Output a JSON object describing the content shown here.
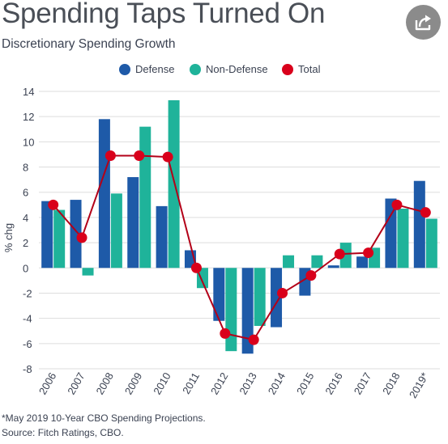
{
  "header": {
    "title": "Spending Taps Turned On",
    "subtitle": "Discretionary Spending Growth"
  },
  "share_button": {
    "icon": "share-icon"
  },
  "footer": {
    "note": "*May 2019 10-Year CBO Spending Projections.",
    "source": "Source: Fitch Ratings, CBO."
  },
  "colors": {
    "defense": "#1e5aa8",
    "non_defense": "#1fb39a",
    "total": "#d9001b",
    "total_line": "#b30018",
    "grid": "#dddddd"
  },
  "chart_data": {
    "type": "bar",
    "title": "Spending Taps Turned On",
    "subtitle": "Discretionary Spending Growth",
    "xlabel": "",
    "ylabel": "% chg",
    "ylim": [
      -8,
      14
    ],
    "yticks": [
      14,
      12,
      10,
      8,
      6,
      4,
      2,
      0,
      -2,
      -4,
      -6,
      -8
    ],
    "grid": true,
    "legend": "top-center",
    "categories": [
      "2006",
      "2007",
      "2008",
      "2009",
      "2010",
      "2011",
      "2012",
      "2013",
      "2014",
      "2015",
      "2016",
      "2017",
      "2018",
      "2019*"
    ],
    "series": [
      {
        "name": "Defense",
        "type": "bar",
        "values": [
          5.3,
          5.4,
          11.8,
          7.2,
          4.9,
          1.4,
          -4.2,
          -6.8,
          -4.7,
          -2.2,
          0.2,
          0.9,
          5.5,
          6.9
        ]
      },
      {
        "name": "Non-Defense",
        "type": "bar",
        "values": [
          4.6,
          -0.6,
          5.9,
          11.2,
          13.3,
          -1.6,
          -6.6,
          -4.6,
          1.0,
          1.0,
          2.0,
          1.6,
          4.7,
          3.9
        ]
      },
      {
        "name": "Total",
        "type": "line",
        "values": [
          5.0,
          2.4,
          8.9,
          8.9,
          8.8,
          0.0,
          -5.2,
          -5.7,
          -2.0,
          -0.6,
          1.1,
          1.2,
          5.0,
          4.4
        ]
      }
    ]
  }
}
